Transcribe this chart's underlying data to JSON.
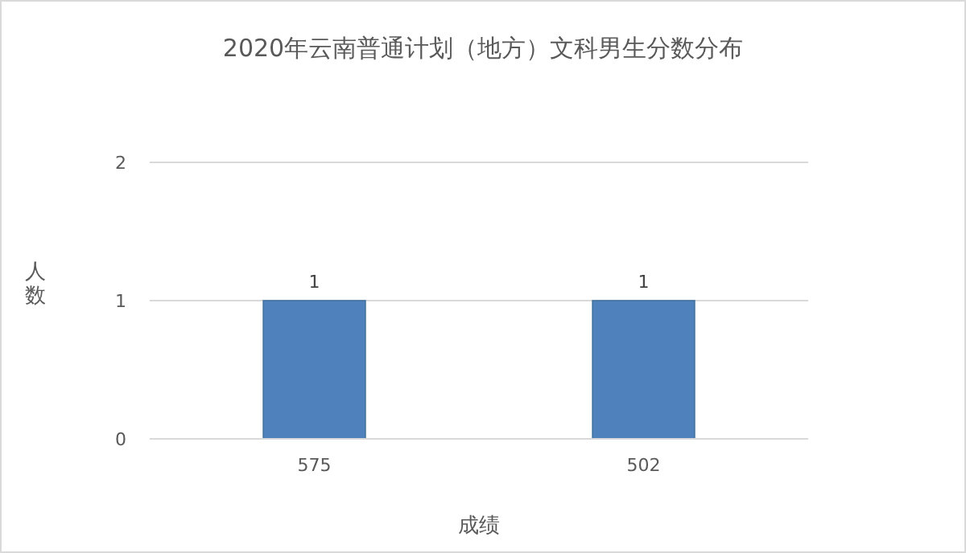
{
  "chart_data": {
    "type": "bar",
    "title": "2020年云南普通计划（地方）文科男生分数分布",
    "xlabel": "成绩",
    "ylabel": "人数",
    "categories": [
      "575",
      "502"
    ],
    "values": [
      1,
      1
    ],
    "color": "#4f81bd",
    "ylim": [
      0,
      2
    ],
    "yticks": [
      0,
      1,
      2
    ],
    "grid": "y",
    "data_labels": true
  }
}
